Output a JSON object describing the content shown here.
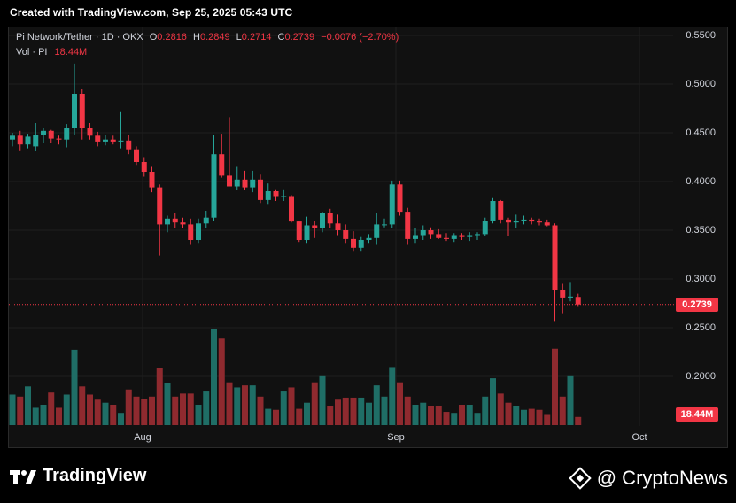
{
  "header": {
    "title": "Created with TradingView.com, Sep 25, 2025 05:43 UTC"
  },
  "legend": {
    "symbol": "Pi Network/Tether · 1D · OKX",
    "o_label": "O",
    "o_value": "0.2816",
    "h_label": "H",
    "h_value": "0.2849",
    "l_label": "L",
    "l_value": "0.2714",
    "c_label": "C",
    "c_value": "0.2739",
    "change": "−0.0076 (−2.70%)",
    "vol_label": "Vol · PI",
    "vol_value": "18.44M"
  },
  "colors": {
    "up": "#26a69a",
    "down": "#f23645",
    "background": "#111111",
    "grid": "#1e1e1e"
  },
  "branding": {
    "left": "TradingView",
    "right": "@ CryptoNews"
  },
  "chart_data": {
    "type": "candlestick",
    "title": "Pi Network/Tether · 1D · OKX",
    "y_ticks": [
      "0.5500",
      "0.5000",
      "0.4500",
      "0.4000",
      "0.3500",
      "0.3000",
      "0.2500",
      "0.2000"
    ],
    "ylim": [
      0.16,
      0.56
    ],
    "x_ticks": [
      "Aug",
      "Sep",
      "Oct"
    ],
    "last_price_label": "0.2739",
    "volume_label": "18.44M",
    "grid": true,
    "candles": [
      [
        0.443,
        0.45,
        0.436,
        0.447
      ],
      [
        0.447,
        0.452,
        0.432,
        0.438
      ],
      [
        0.438,
        0.449,
        0.434,
        0.446
      ],
      [
        0.436,
        0.46,
        0.431,
        0.448
      ],
      [
        0.448,
        0.455,
        0.44,
        0.452
      ],
      [
        0.452,
        0.453,
        0.44,
        0.444
      ],
      [
        0.444,
        0.447,
        0.438,
        0.443
      ],
      [
        0.443,
        0.459,
        0.435,
        0.455
      ],
      [
        0.455,
        0.521,
        0.448,
        0.49
      ],
      [
        0.49,
        0.495,
        0.443,
        0.455
      ],
      [
        0.455,
        0.46,
        0.443,
        0.447
      ],
      [
        0.447,
        0.451,
        0.436,
        0.441
      ],
      [
        0.441,
        0.448,
        0.437,
        0.443
      ],
      [
        0.443,
        0.447,
        0.438,
        0.441
      ],
      [
        0.441,
        0.472,
        0.434,
        0.442
      ],
      [
        0.442,
        0.448,
        0.428,
        0.433
      ],
      [
        0.433,
        0.436,
        0.417,
        0.42
      ],
      [
        0.42,
        0.425,
        0.405,
        0.41
      ],
      [
        0.41,
        0.415,
        0.389,
        0.394
      ],
      [
        0.394,
        0.397,
        0.324,
        0.356
      ],
      [
        0.356,
        0.365,
        0.348,
        0.362
      ],
      [
        0.362,
        0.368,
        0.352,
        0.358
      ],
      [
        0.358,
        0.363,
        0.352,
        0.356
      ],
      [
        0.356,
        0.362,
        0.335,
        0.34
      ],
      [
        0.34,
        0.362,
        0.337,
        0.357
      ],
      [
        0.357,
        0.37,
        0.352,
        0.363
      ],
      [
        0.363,
        0.448,
        0.36,
        0.428
      ],
      [
        0.428,
        0.449,
        0.404,
        0.406
      ],
      [
        0.406,
        0.466,
        0.395,
        0.395
      ],
      [
        0.395,
        0.415,
        0.391,
        0.402
      ],
      [
        0.402,
        0.411,
        0.391,
        0.394
      ],
      [
        0.394,
        0.411,
        0.389,
        0.402
      ],
      [
        0.402,
        0.407,
        0.378,
        0.381
      ],
      [
        0.381,
        0.398,
        0.377,
        0.39
      ],
      [
        0.39,
        0.392,
        0.38,
        0.385
      ],
      [
        0.385,
        0.392,
        0.38,
        0.385
      ],
      [
        0.385,
        0.386,
        0.358,
        0.359
      ],
      [
        0.359,
        0.36,
        0.338,
        0.34
      ],
      [
        0.34,
        0.364,
        0.337,
        0.355
      ],
      [
        0.355,
        0.36,
        0.342,
        0.352
      ],
      [
        0.352,
        0.369,
        0.348,
        0.368
      ],
      [
        0.368,
        0.372,
        0.352,
        0.357
      ],
      [
        0.357,
        0.366,
        0.345,
        0.35
      ],
      [
        0.35,
        0.356,
        0.337,
        0.341
      ],
      [
        0.341,
        0.349,
        0.328,
        0.332
      ],
      [
        0.332,
        0.343,
        0.328,
        0.34
      ],
      [
        0.34,
        0.346,
        0.337,
        0.342
      ],
      [
        0.342,
        0.368,
        0.335,
        0.356
      ],
      [
        0.356,
        0.362,
        0.353,
        0.356
      ],
      [
        0.356,
        0.401,
        0.352,
        0.397
      ],
      [
        0.397,
        0.401,
        0.365,
        0.369
      ],
      [
        0.369,
        0.373,
        0.335,
        0.341
      ],
      [
        0.341,
        0.352,
        0.337,
        0.345
      ],
      [
        0.345,
        0.355,
        0.34,
        0.35
      ],
      [
        0.35,
        0.353,
        0.341,
        0.346
      ],
      [
        0.346,
        0.351,
        0.341,
        0.342
      ],
      [
        0.342,
        0.347,
        0.339,
        0.341
      ],
      [
        0.341,
        0.347,
        0.338,
        0.345
      ],
      [
        0.345,
        0.347,
        0.34,
        0.343
      ],
      [
        0.343,
        0.348,
        0.339,
        0.345
      ],
      [
        0.345,
        0.348,
        0.34,
        0.346
      ],
      [
        0.346,
        0.363,
        0.344,
        0.36
      ],
      [
        0.36,
        0.383,
        0.357,
        0.38
      ],
      [
        0.38,
        0.381,
        0.357,
        0.361
      ],
      [
        0.361,
        0.363,
        0.344,
        0.358
      ],
      [
        0.358,
        0.366,
        0.352,
        0.36
      ],
      [
        0.36,
        0.365,
        0.356,
        0.361
      ],
      [
        0.361,
        0.363,
        0.356,
        0.359
      ],
      [
        0.359,
        0.362,
        0.355,
        0.358
      ],
      [
        0.358,
        0.361,
        0.354,
        0.355
      ],
      [
        0.355,
        0.357,
        0.256,
        0.289
      ],
      [
        0.289,
        0.295,
        0.264,
        0.281
      ],
      [
        0.281,
        0.296,
        0.277,
        0.282
      ],
      [
        0.2816,
        0.2849,
        0.2714,
        0.2739
      ]
    ],
    "volumes_relative": [
      0.3,
      0.28,
      0.38,
      0.17,
      0.2,
      0.32,
      0.17,
      0.3,
      0.74,
      0.38,
      0.3,
      0.25,
      0.22,
      0.2,
      0.12,
      0.35,
      0.28,
      0.26,
      0.28,
      0.56,
      0.41,
      0.28,
      0.31,
      0.31,
      0.2,
      0.33,
      0.94,
      0.85,
      0.42,
      0.37,
      0.39,
      0.39,
      0.28,
      0.16,
      0.15,
      0.33,
      0.37,
      0.16,
      0.22,
      0.42,
      0.48,
      0.19,
      0.25,
      0.27,
      0.27,
      0.27,
      0.22,
      0.39,
      0.28,
      0.57,
      0.42,
      0.28,
      0.2,
      0.22,
      0.19,
      0.19,
      0.13,
      0.12,
      0.2,
      0.2,
      0.12,
      0.28,
      0.46,
      0.31,
      0.22,
      0.19,
      0.15,
      0.16,
      0.15,
      0.1,
      0.75,
      0.28,
      0.48,
      0.08
    ]
  }
}
